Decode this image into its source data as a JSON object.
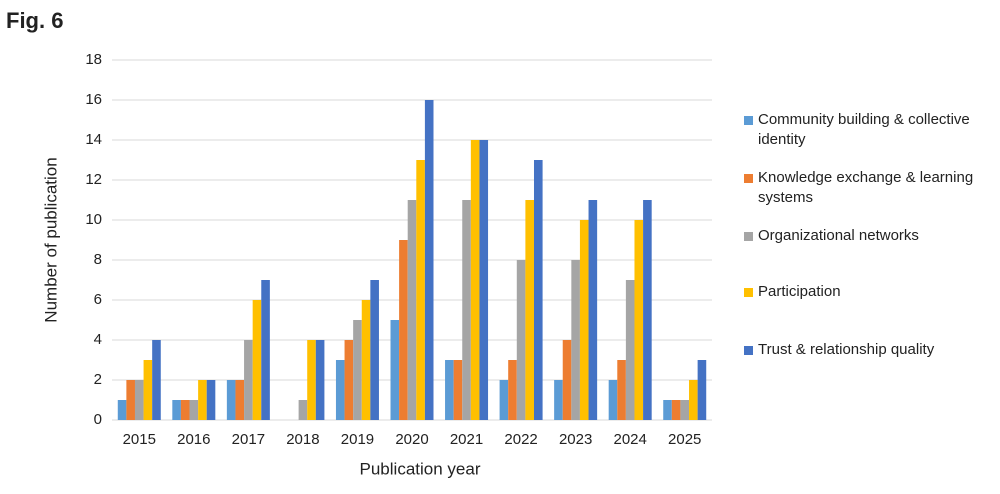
{
  "figure_label": "Fig. 6",
  "chart_data": {
    "type": "bar",
    "x_label": "Publication year",
    "y_label": "Number of publication",
    "categories": [
      "2015",
      "2016",
      "2017",
      "2018",
      "2019",
      "2020",
      "2021",
      "2022",
      "2023",
      "2024",
      "2025"
    ],
    "series": [
      {
        "name": "Community building & collective identity",
        "color": "#5b9bd5",
        "values": [
          1,
          1,
          2,
          0,
          3,
          5,
          3,
          2,
          2,
          2,
          1
        ]
      },
      {
        "name": "Knowledge exchange & learning systems",
        "color": "#ed7d31",
        "values": [
          2,
          1,
          2,
          0,
          4,
          9,
          3,
          3,
          4,
          3,
          1
        ]
      },
      {
        "name": "Organizational networks",
        "color": "#a5a5a5",
        "values": [
          2,
          1,
          4,
          1,
          5,
          11,
          11,
          8,
          8,
          7,
          1
        ]
      },
      {
        "name": "Participation",
        "color": "#ffc000",
        "values": [
          3,
          2,
          6,
          4,
          6,
          13,
          14,
          11,
          10,
          10,
          2
        ]
      },
      {
        "name": "Trust & relationship quality",
        "color": "#4472c4",
        "values": [
          4,
          2,
          7,
          4,
          7,
          16,
          14,
          13,
          11,
          11,
          3
        ]
      }
    ],
    "ylim": [
      0,
      18
    ],
    "yticks": [
      0,
      2,
      4,
      6,
      8,
      10,
      12,
      14,
      16,
      18
    ],
    "grid": true,
    "legend": "right"
  }
}
